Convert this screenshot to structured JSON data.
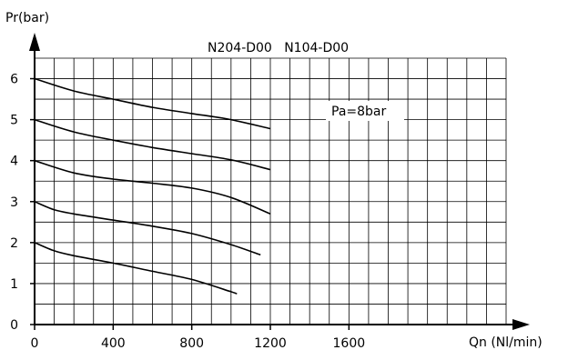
{
  "chart_data": {
    "type": "line",
    "title": "N204-D00   N104-D00",
    "ylabel": "Pr(bar)",
    "xlabel": "Qn (Nl/min)",
    "annotation": "Pa=8bar",
    "xlim": [
      0,
      2400
    ],
    "ylim": [
      0,
      6.5
    ],
    "x_ticks": [
      0,
      400,
      800,
      1200,
      1600
    ],
    "x_tick_labels": [
      "0",
      "400",
      "800",
      "1200",
      "1600"
    ],
    "y_ticks": [
      0,
      1,
      2,
      3,
      4,
      5,
      6
    ],
    "y_tick_labels": [
      "0",
      "1",
      "2",
      "3",
      "4",
      "5",
      "6"
    ],
    "grid": true,
    "grid_x_step": 100,
    "grid_y_step": 0.5,
    "series": [
      {
        "x": [
          0,
          200,
          400,
          600,
          800,
          1000,
          1200
        ],
        "y": [
          6.0,
          5.7,
          5.5,
          5.3,
          5.15,
          5.0,
          4.78
        ]
      },
      {
        "x": [
          0,
          200,
          400,
          600,
          800,
          1000,
          1200
        ],
        "y": [
          5.0,
          4.7,
          4.5,
          4.32,
          4.17,
          4.02,
          3.78
        ]
      },
      {
        "x": [
          0,
          200,
          400,
          600,
          800,
          1000,
          1200
        ],
        "y": [
          4.0,
          3.7,
          3.55,
          3.45,
          3.33,
          3.1,
          2.7
        ]
      },
      {
        "x": [
          0,
          100,
          200,
          400,
          600,
          800,
          1000,
          1150
        ],
        "y": [
          3.0,
          2.8,
          2.7,
          2.55,
          2.4,
          2.22,
          1.95,
          1.7
        ]
      },
      {
        "x": [
          0,
          100,
          200,
          400,
          600,
          800,
          1000,
          1030
        ],
        "y": [
          2.0,
          1.8,
          1.68,
          1.5,
          1.3,
          1.1,
          0.8,
          0.75
        ]
      }
    ]
  }
}
